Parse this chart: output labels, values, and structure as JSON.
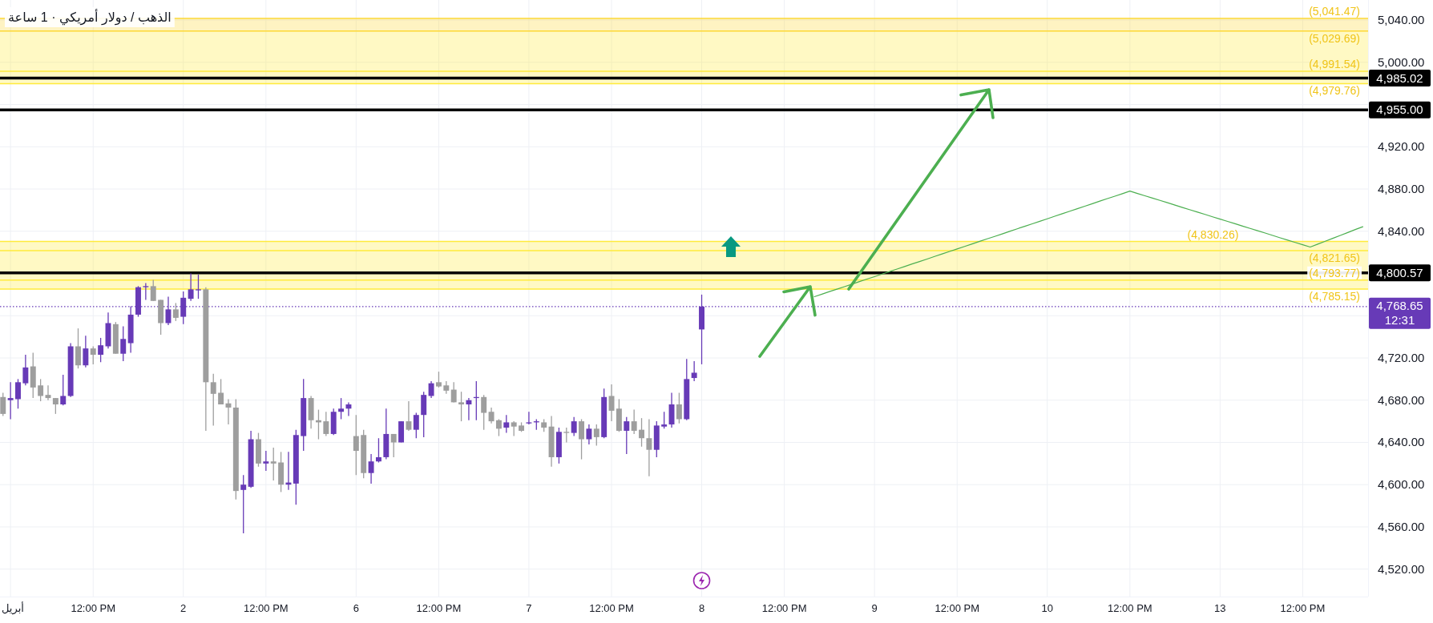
{
  "chart_data": {
    "type": "candlestick",
    "title": "الذهب / دولار أمريكي · 1 ساعة",
    "categories": [
      null,
      "أبريل",
      null,
      null,
      null,
      null,
      null,
      null,
      null,
      null,
      null,
      null,
      "12:00 PM",
      null,
      null,
      null,
      null,
      null,
      null,
      null,
      null,
      null,
      null,
      null,
      "2",
      null,
      null,
      null,
      null,
      null,
      null,
      null,
      null,
      null,
      null,
      "12:00 PM",
      null,
      null,
      null,
      null,
      null,
      null,
      null,
      null,
      null,
      null,
      null,
      "6",
      null,
      null,
      null,
      null,
      null,
      null,
      null,
      null,
      null,
      null,
      "12:00 PM",
      null,
      null,
      null,
      null,
      null,
      null,
      null,
      null,
      null,
      null,
      null,
      "7",
      null,
      null,
      null,
      null,
      null,
      null,
      null,
      null,
      null,
      null,
      "12:00 PM",
      null,
      null,
      null,
      null,
      null,
      null,
      null,
      null,
      null,
      null,
      null,
      "8",
      null,
      null,
      null,
      null,
      null,
      null,
      null,
      null,
      null,
      null,
      "12:00 PM",
      null,
      null,
      null,
      null,
      null,
      null,
      null,
      null,
      null,
      null,
      null,
      "9",
      null,
      null,
      null,
      null,
      null,
      null,
      null,
      null,
      null,
      null,
      "12:00 PM",
      null,
      null,
      null,
      null,
      null,
      null,
      null,
      null,
      null,
      null,
      null,
      "10",
      null,
      null,
      null,
      null,
      null,
      null,
      null,
      null,
      null,
      null,
      "12:00 PM",
      null,
      null,
      null,
      null,
      null,
      null,
      null,
      null,
      null,
      null,
      null,
      "13",
      null,
      null,
      null,
      null,
      null,
      null,
      null,
      null,
      null,
      null,
      "12:00 PM",
      null,
      null,
      null,
      null,
      null,
      null,
      null,
      null
    ],
    "ylim": [
      4494,
      5059
    ],
    "yticks": [
      {
        "value": 4520,
        "label": "4,520.00"
      },
      {
        "value": 4560,
        "label": "4,560.00"
      },
      {
        "value": 4600,
        "label": "4,600.00"
      },
      {
        "value": 4640,
        "label": "4,640.00"
      },
      {
        "value": 4680,
        "label": "4,680.00"
      },
      {
        "value": 4720,
        "label": "4,720.00"
      },
      {
        "value": 4760,
        "label": null
      },
      {
        "value": 4800,
        "label": null
      },
      {
        "value": 4840,
        "label": "4,840.00"
      },
      {
        "value": 4880,
        "label": "4,880.00"
      },
      {
        "value": 4920,
        "label": "4,920.00"
      },
      {
        "value": 4960,
        "label": null
      },
      {
        "value": 5000,
        "label": "5,000.00"
      },
      {
        "value": 5040,
        "label": "5,040.00"
      }
    ],
    "grid": true,
    "bands": [
      {
        "axis": "y",
        "from": 5029.69,
        "to": 5041.47,
        "color": "#fdd835"
      },
      {
        "axis": "y",
        "from": 4991.54,
        "to": 5029.69,
        "color": "#ffeb3b"
      },
      {
        "axis": "y",
        "from": 4979.76,
        "to": 4991.54,
        "color": "#ffeb3b"
      },
      {
        "axis": "y",
        "from": 4821.65,
        "to": 4830.26,
        "color": "#ffeb3b"
      },
      {
        "axis": "y",
        "from": 4793.77,
        "to": 4821.65,
        "color": "#ffeb3b"
      },
      {
        "axis": "y",
        "from": 4785.15,
        "to": 4793.77,
        "color": "#ffeb3b"
      }
    ],
    "ref_lines": [
      {
        "axis": "y",
        "value": 4985.02,
        "label": "4,985.02",
        "color": "#000000",
        "line_style": "solid"
      },
      {
        "axis": "y",
        "value": 4955.0,
        "label": "4,955.00",
        "color": "#000000",
        "line_style": "solid"
      },
      {
        "axis": "y",
        "value": 4800.57,
        "label": "4,800.57",
        "color": "#000000",
        "line_style": "solid"
      },
      {
        "axis": "y",
        "value": 4768.65,
        "label": "4,768.65\n12:31",
        "color": "#673ab7",
        "line_style": "dotted"
      },
      {
        "axis": "y",
        "value": 5041.47,
        "color": "#fdd835",
        "line_style": "solid"
      },
      {
        "axis": "y",
        "value": 5029.69,
        "color": "#fdd835",
        "line_style": "solid"
      },
      {
        "axis": "y",
        "value": 4991.54,
        "color": "#ffeb3b",
        "line_style": "solid"
      },
      {
        "axis": "y",
        "value": 4979.76,
        "color": "#ffeb3b",
        "line_style": "solid"
      },
      {
        "axis": "y",
        "value": 4830.26,
        "color": "#ffeb3b",
        "line_style": "solid"
      },
      {
        "axis": "y",
        "value": 4821.65,
        "color": "#ffeb3b",
        "line_style": "solid"
      },
      {
        "axis": "y",
        "value": 4793.77,
        "color": "#ffeb3b",
        "line_style": "solid"
      },
      {
        "axis": "y",
        "value": 4785.15,
        "color": "#ffeb3b",
        "line_style": "solid"
      }
    ],
    "annotations": [
      {
        "text": "(5,041.47)",
        "y": 5041.47
      },
      {
        "text": "(5,029.69)",
        "y": 5029.69
      },
      {
        "text": "(4,991.54)",
        "y": 4991.54
      },
      {
        "text": "(4,979.76)",
        "y": 4979.76
      },
      {
        "text": "(4,830.26)",
        "y": 4830.26
      },
      {
        "text": "(4,821.65)",
        "y": 4821.65
      },
      {
        "text": "(4,793.77)",
        "y": 4793.77
      },
      {
        "text": "(4,785.15)",
        "y": 4785.15
      }
    ],
    "series": [
      {
        "type": "candlestick",
        "ohlc": [
          [
            4683,
            4687,
            4665,
            4667
          ],
          [
            4680,
            4697,
            4662,
            4682
          ],
          [
            4681,
            4700,
            4672,
            4697
          ],
          [
            4696,
            4723,
            4694,
            4711
          ],
          [
            4712,
            4725,
            4682,
            4692
          ],
          [
            4694,
            4700,
            4679,
            4684
          ],
          [
            4685,
            4694,
            4680,
            4682
          ],
          [
            4682,
            4682,
            4667,
            4676
          ],
          [
            4676,
            4704,
            4675,
            4684
          ],
          [
            4684,
            4734,
            4683,
            4731
          ],
          [
            4731,
            4748,
            4710,
            4713
          ],
          [
            4713,
            4741,
            4711,
            4729
          ],
          [
            4729,
            4731,
            4714,
            4723
          ],
          [
            4723,
            4739,
            4716,
            4732
          ],
          [
            4731,
            4763,
            4729,
            4753
          ],
          [
            4752,
            4754,
            4724,
            4724
          ],
          [
            4724,
            4750,
            4717,
            4738
          ],
          [
            4734,
            4769,
            4725,
            4761
          ],
          [
            4761,
            4788,
            4759,
            4787
          ],
          [
            4787,
            4791,
            4775,
            4788
          ],
          [
            4788,
            4794,
            4774,
            4774
          ],
          [
            4775,
            4775,
            4742,
            4753
          ],
          [
            4753,
            4778,
            4751,
            4766
          ],
          [
            4766,
            4772,
            4755,
            4758
          ],
          [
            4759,
            4783,
            4752,
            4777
          ],
          [
            4776,
            4800,
            4774,
            4785
          ],
          [
            4784,
            4799,
            4776,
            4785
          ],
          [
            4785,
            4787,
            4651,
            4697
          ],
          [
            4697,
            4705,
            4656,
            4686
          ],
          [
            4687,
            4700,
            4676,
            4676
          ],
          [
            4677,
            4681,
            4657,
            4673
          ],
          [
            4673,
            4681,
            4586,
            4594
          ],
          [
            4595,
            4609,
            4554,
            4600
          ],
          [
            4598,
            4651,
            4597,
            4643
          ],
          [
            4643,
            4649,
            4617,
            4620
          ],
          [
            4620,
            4632,
            4613,
            4622
          ],
          [
            4622,
            4635,
            4604,
            4620
          ],
          [
            4621,
            4631,
            4593,
            4600
          ],
          [
            4600,
            4631,
            4595,
            4602
          ],
          [
            4601,
            4652,
            4581,
            4647
          ],
          [
            4646,
            4700,
            4632,
            4682
          ],
          [
            4682,
            4684,
            4653,
            4661
          ],
          [
            4661,
            4671,
            4643,
            4659
          ],
          [
            4660,
            4669,
            4646,
            4648
          ],
          [
            4648,
            4672,
            4647,
            4669
          ],
          [
            4669,
            4682,
            4662,
            4672
          ],
          [
            4672,
            4678,
            4665,
            4676
          ],
          [
            4646,
            4666,
            4609,
            4632
          ],
          [
            4647,
            4652,
            4606,
            4611
          ],
          [
            4611,
            4629,
            4601,
            4622
          ],
          [
            4622,
            4644,
            4621,
            4626
          ],
          [
            4626,
            4672,
            4624,
            4648
          ],
          [
            4648,
            4648,
            4626,
            4640
          ],
          [
            4640,
            4660,
            4640,
            4660
          ],
          [
            4660,
            4679,
            4651,
            4652
          ],
          [
            4652,
            4668,
            4644,
            4666
          ],
          [
            4666,
            4688,
            4645,
            4685
          ],
          [
            4684,
            4698,
            4682,
            4696
          ],
          [
            4697,
            4707,
            4692,
            4693
          ],
          [
            4694,
            4698,
            4686,
            4689
          ],
          [
            4690,
            4697,
            4678,
            4678
          ],
          [
            4678,
            4688,
            4660,
            4676
          ],
          [
            4676,
            4682,
            4661,
            4680
          ],
          [
            4682,
            4698,
            4661,
            4683
          ],
          [
            4683,
            4685,
            4652,
            4668
          ],
          [
            4669,
            4673,
            4658,
            4660
          ],
          [
            4661,
            4662,
            4646,
            4653
          ],
          [
            4654,
            4666,
            4649,
            4659
          ],
          [
            4659,
            4660,
            4646,
            4655
          ],
          [
            4656,
            4659,
            4650,
            4651
          ],
          [
            4658,
            4669,
            4657,
            4659
          ],
          [
            4659,
            4662,
            4652,
            4660
          ],
          [
            4659,
            4662,
            4650,
            4654
          ],
          [
            4655,
            4665,
            4617,
            4626
          ],
          [
            4626,
            4654,
            4620,
            4650
          ],
          [
            4650,
            4654,
            4640,
            4649
          ],
          [
            4649,
            4664,
            4646,
            4660
          ],
          [
            4660,
            4662,
            4624,
            4643
          ],
          [
            4643,
            4657,
            4638,
            4653
          ],
          [
            4653,
            4657,
            4637,
            4645
          ],
          [
            4645,
            4691,
            4644,
            4683
          ],
          [
            4684,
            4695,
            4660,
            4670
          ],
          [
            4672,
            4681,
            4650,
            4651
          ],
          [
            4651,
            4664,
            4629,
            4660
          ],
          [
            4660,
            4671,
            4648,
            4651
          ],
          [
            4652,
            4663,
            4636,
            4644
          ],
          [
            4644,
            4662,
            4608,
            4633
          ],
          [
            4633,
            4660,
            4626,
            4656
          ],
          [
            4655,
            4669,
            4653,
            4657
          ],
          [
            4657,
            4687,
            4654,
            4676
          ],
          [
            4676,
            4687,
            4658,
            4662
          ],
          [
            4662,
            4719,
            4661,
            4700
          ],
          [
            4701,
            4717,
            4698,
            4706
          ],
          [
            4747,
            4780,
            4714,
            4768.65
          ],
          null,
          null,
          null,
          null,
          null,
          null,
          null,
          null,
          null,
          null,
          null,
          null,
          null,
          null,
          null,
          null,
          null,
          null,
          null,
          null,
          null,
          null,
          null,
          null,
          null,
          null,
          null,
          null,
          null,
          null,
          null,
          null,
          null,
          null,
          null,
          null,
          null,
          null,
          null,
          null,
          null,
          null,
          null,
          null,
          null,
          null,
          null,
          null,
          null,
          null,
          null,
          null,
          null,
          null,
          null,
          null,
          null,
          null,
          null,
          null,
          null,
          null,
          null,
          null,
          null,
          null,
          null,
          null,
          null,
          null,
          null,
          null,
          null,
          null,
          null,
          null,
          null,
          null,
          null,
          null,
          null,
          null,
          null,
          null,
          null,
          null,
          null,
          null
        ],
        "colors": [
          "#9e9e9e",
          "#673ab7",
          "#673ab7",
          "#673ab7",
          "#9e9e9e",
          "#9e9e9e",
          "#9e9e9e",
          "#9e9e9e",
          "#673ab7",
          "#673ab7",
          "#9e9e9e",
          "#673ab7",
          "#9e9e9e",
          "#673ab7",
          "#673ab7",
          "#9e9e9e",
          "#673ab7",
          "#673ab7",
          "#673ab7",
          "#673ab7",
          "#9e9e9e",
          "#9e9e9e",
          "#673ab7",
          "#9e9e9e",
          "#673ab7",
          "#673ab7",
          "#673ab7",
          "#9e9e9e",
          "#9e9e9e",
          "#9e9e9e",
          "#9e9e9e",
          "#9e9e9e",
          "#673ab7",
          "#673ab7",
          "#9e9e9e",
          "#673ab7",
          "#9e9e9e",
          "#9e9e9e",
          "#673ab7",
          "#673ab7",
          "#673ab7",
          "#9e9e9e",
          "#9e9e9e",
          "#9e9e9e",
          "#673ab7",
          "#673ab7",
          "#673ab7",
          "#9e9e9e",
          "#9e9e9e",
          "#673ab7",
          "#673ab7",
          "#673ab7",
          "#9e9e9e",
          "#673ab7",
          "#9e9e9e",
          "#673ab7",
          "#673ab7",
          "#673ab7",
          "#9e9e9e",
          "#9e9e9e",
          "#9e9e9e",
          "#9e9e9e",
          "#673ab7",
          "#673ab7",
          "#9e9e9e",
          "#9e9e9e",
          "#9e9e9e",
          "#673ab7",
          "#9e9e9e",
          "#9e9e9e",
          "#673ab7",
          "#673ab7",
          "#9e9e9e",
          "#9e9e9e",
          "#673ab7",
          "#9e9e9e",
          "#673ab7",
          "#9e9e9e",
          "#673ab7",
          "#9e9e9e",
          "#673ab7",
          "#9e9e9e",
          "#9e9e9e",
          "#673ab7",
          "#9e9e9e",
          "#9e9e9e",
          "#9e9e9e",
          "#673ab7",
          "#673ab7",
          "#673ab7",
          "#9e9e9e",
          "#673ab7",
          "#673ab7",
          "#673ab7",
          null,
          null,
          null,
          null,
          null,
          null,
          null,
          null,
          null,
          null,
          null,
          null,
          null,
          null,
          null,
          null,
          null,
          null,
          null,
          null,
          null,
          null,
          null,
          null,
          null,
          null,
          null,
          null,
          null,
          null,
          null,
          null,
          null,
          null,
          null,
          null,
          null,
          null,
          null,
          null,
          null,
          null,
          null,
          null,
          null,
          null,
          null,
          null,
          null,
          null,
          null,
          null,
          null,
          null,
          null,
          null,
          null,
          null,
          null,
          null,
          null,
          null,
          null,
          null,
          null,
          null,
          null,
          null,
          null,
          null,
          null,
          null,
          null,
          null,
          null,
          null,
          null,
          null,
          null,
          null,
          null,
          null,
          null,
          null,
          null,
          null,
          null,
          null
        ]
      },
      {
        "type": "line",
        "color": "#4caf50",
        "values": [
          null,
          null,
          null,
          null,
          null,
          null,
          null,
          null,
          null,
          null,
          null,
          null,
          null,
          null,
          null,
          null,
          null,
          null,
          null,
          null,
          null,
          null,
          null,
          null,
          null,
          null,
          null,
          null,
          null,
          null,
          null,
          null,
          null,
          null,
          null,
          null,
          null,
          null,
          null,
          null,
          null,
          null,
          null,
          null,
          null,
          null,
          null,
          null,
          null,
          null,
          null,
          null,
          null,
          null,
          null,
          null,
          null,
          null,
          null,
          null,
          null,
          null,
          null,
          null,
          null,
          null,
          null,
          null,
          null,
          null,
          null,
          null,
          null,
          null,
          null,
          null,
          null,
          null,
          null,
          null,
          null,
          null,
          null,
          null,
          null,
          null,
          null,
          null,
          null,
          null,
          null,
          null,
          null,
          null,
          null,
          null,
          null,
          null,
          null,
          null,
          null,
          null,
          null,
          null,
          null,
          null,
          null,
          null,
          4778.0,
          4780.4,
          4782.8,
          4785.1,
          4787.5,
          4789.9,
          4792.3,
          4794.7,
          4797.0,
          4799.4,
          4801.8,
          4804.2,
          4806.6,
          4809.0,
          4811.3,
          4813.7,
          4816.1,
          4818.5,
          4820.9,
          4823.2,
          4825.6,
          4828.0,
          4830.4,
          4832.8,
          4835.1,
          4837.5,
          4839.9,
          4842.3,
          4844.7,
          4847.0,
          4849.4,
          4851.8,
          4854.2,
          4856.6,
          4859.0,
          4861.3,
          4863.7,
          4866.1,
          4868.5,
          4870.9,
          4873.2,
          4875.6,
          4878.0,
          4875.8,
          4873.6,
          4871.4,
          4869.2,
          4867.0,
          4864.8,
          4862.5,
          4860.3,
          4858.1,
          4855.9,
          4853.7,
          4851.5,
          4849.3,
          4847.1,
          4844.9,
          4842.7,
          4840.5,
          4838.3,
          4836.0,
          4833.8,
          4831.6,
          4829.4,
          4827.2,
          4825.0,
          4827.8,
          4830.5,
          4833.3,
          4836.0,
          4838.8,
          4841.6,
          4844.3
        ]
      }
    ]
  }
}
